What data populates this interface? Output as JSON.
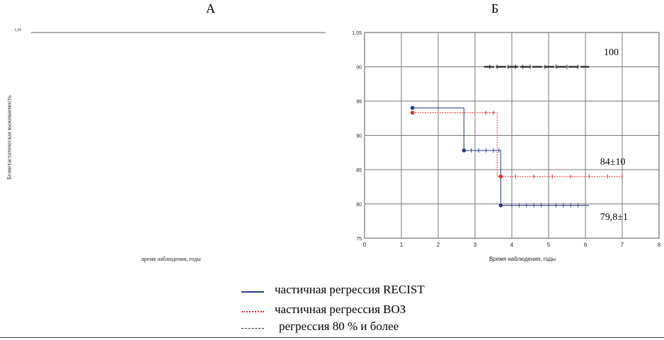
{
  "panels": {
    "a_label": "А",
    "b_label": "Б"
  },
  "panel_a": {
    "ylabel": "Безметастатическая выживаемость",
    "xlabel": "время наблюдения, годы",
    "top_tick": "1,05"
  },
  "legend": {
    "items": [
      {
        "label": "частичная регрессия RECIST",
        "color": "#2b3a8f",
        "style": "solid"
      },
      {
        "label": "частичная регрессия ВОЗ",
        "color": "#e53030",
        "style": "dotted"
      },
      {
        "label": "регрессия 80 % и более",
        "color": "#222222",
        "style": "dashed"
      }
    ]
  },
  "chart_data": [
    {
      "type": "line",
      "panel": "А",
      "title": "",
      "xlabel": "время наблюдения, годы",
      "ylabel": "Безметастатическая выживаемость",
      "ylim": [
        null,
        1.05
      ],
      "series": []
    },
    {
      "type": "line",
      "panel": "Б",
      "title": "",
      "xlabel": "Время наблюдения, годы",
      "ylabel": "",
      "xlim": [
        0,
        8
      ],
      "ylim": [
        0.75,
        1.05
      ],
      "x_ticks": [
        "0",
        "1",
        "2",
        "3",
        "4",
        "5",
        "6",
        "7",
        "8"
      ],
      "y_ticks": [
        "1.05",
        "00",
        "95",
        "90",
        "85",
        "80",
        "75"
      ],
      "y_tick_values": [
        1.05,
        1.0,
        0.95,
        0.9,
        0.85,
        0.8,
        0.75
      ],
      "grid": true,
      "series": [
        {
          "name": "частичная регрессия RECIST",
          "color": "#2b3a8f",
          "style": "solid",
          "steps": [
            [
              1.3,
              0.94
            ],
            [
              2.7,
              0.94
            ],
            [
              2.7,
              0.878
            ],
            [
              3.7,
              0.878
            ],
            [
              3.7,
              0.798
            ],
            [
              6.1,
              0.798
            ]
          ],
          "events": [
            [
              1.3,
              0.94
            ],
            [
              2.7,
              0.878
            ],
            [
              3.7,
              0.798
            ]
          ],
          "censored": [
            2.9,
            3.1,
            3.3,
            3.5,
            3.65,
            4.0,
            4.2,
            4.4,
            4.6,
            4.8,
            5.0,
            5.2,
            5.4,
            5.6,
            5.8
          ]
        },
        {
          "name": "частичная регрессия ВОЗ",
          "color": "#e53030",
          "style": "dotted",
          "steps": [
            [
              1.3,
              0.933
            ],
            [
              3.6,
              0.933
            ],
            [
              3.6,
              0.84
            ],
            [
              7.0,
              0.84
            ]
          ],
          "events": [
            [
              1.3,
              0.933
            ],
            [
              3.7,
              0.84
            ]
          ],
          "censored": [
            3.0,
            3.3,
            3.5,
            4.1,
            4.6,
            5.1,
            5.6,
            6.1,
            6.6,
            7.0
          ]
        },
        {
          "name": "регрессия 80 % и более",
          "color": "#222222",
          "style": "dashed",
          "steps": [
            [
              3.25,
              1.0
            ],
            [
              6.1,
              1.0
            ]
          ],
          "events": [],
          "censored": [
            3.4,
            3.6,
            3.9,
            4.1,
            4.3,
            4.5,
            4.9,
            5.2,
            5.5,
            5.8
          ]
        }
      ],
      "annotations": [
        {
          "text": "100",
          "x": 6.5,
          "y": 1.017
        },
        {
          "text": "84±10",
          "x": 6.4,
          "y": 0.857
        },
        {
          "text": "79,8±1",
          "x": 6.4,
          "y": 0.777
        }
      ]
    }
  ]
}
